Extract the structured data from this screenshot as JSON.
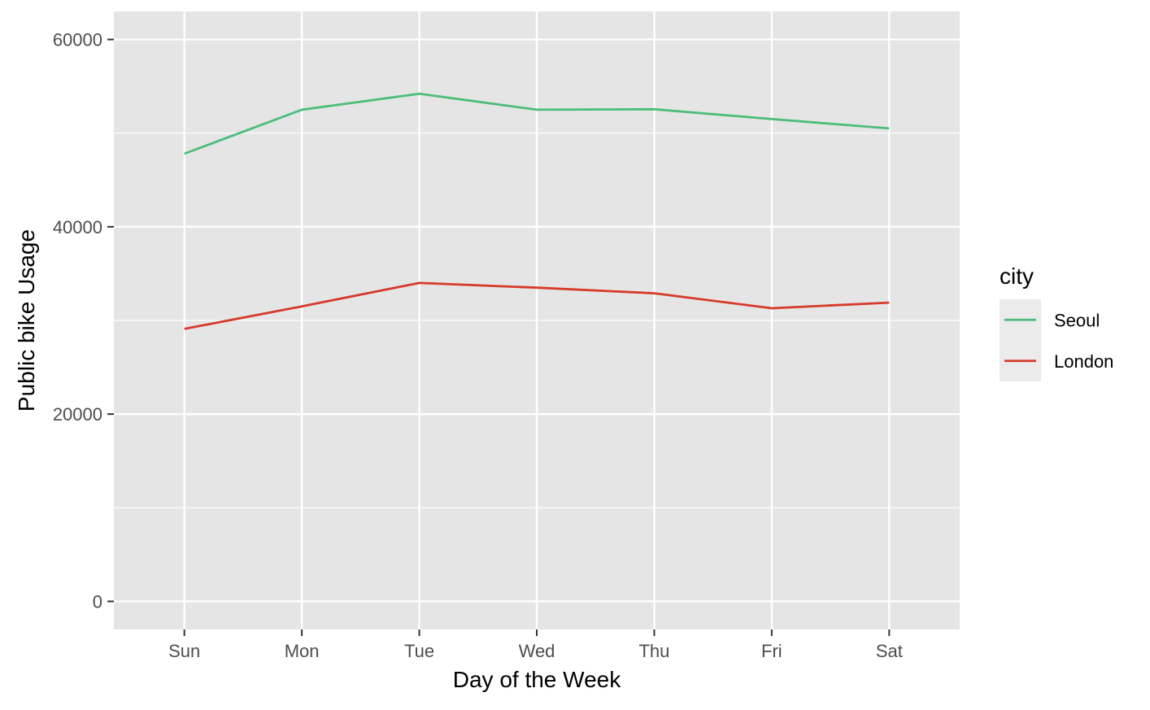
{
  "chart_data": {
    "type": "line",
    "title": "",
    "xlabel": "Day of the Week",
    "ylabel": "Public bike Usage",
    "categories": [
      "Sun",
      "Mon",
      "Tue",
      "Wed",
      "Thu",
      "Fri",
      "Sat"
    ],
    "ylim": [
      -3000,
      63000
    ],
    "y_ticks": [
      0,
      20000,
      40000,
      60000
    ],
    "y_tick_labels": [
      "0",
      "20000",
      "40000",
      "60000"
    ],
    "grid": true,
    "legend_title": "city",
    "legend_position": "right",
    "series": [
      {
        "name": "Seoul",
        "color": "#4dbd7a",
        "values": [
          47800,
          52500,
          54200,
          52500,
          52550,
          51500,
          50500
        ]
      },
      {
        "name": "London",
        "color": "#d63a2a",
        "values": [
          29100,
          31500,
          34000,
          33500,
          32900,
          31300,
          31900
        ]
      }
    ]
  }
}
